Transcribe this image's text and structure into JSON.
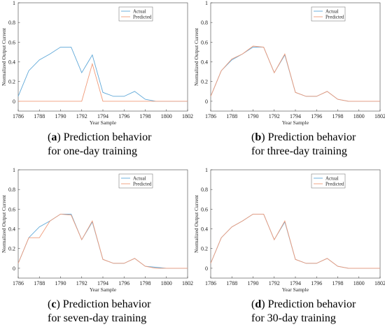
{
  "chart_data": [
    {
      "type": "line",
      "caption_letter": "a",
      "caption_line1": " Prediction behavior",
      "caption_line2": "for one-day training",
      "xlabel": "Year Sample",
      "ylabel": "Normalized Output Current",
      "xlim": [
        1786,
        1802
      ],
      "ylim": [
        -0.1,
        1
      ],
      "xticks": [
        "1786",
        "1788",
        "1790",
        "1792",
        "1794",
        "1796",
        "1798",
        "1800",
        "1802"
      ],
      "yticks": [
        "0",
        "0.2",
        "0.4",
        "0.6",
        "0.8",
        "1"
      ],
      "legend": "top-right",
      "colors": {
        "actual": "#5fa8d8",
        "predicted": "#f09a78"
      },
      "x": [
        1786,
        1787,
        1788,
        1789,
        1790,
        1791,
        1792,
        1793,
        1794,
        1795,
        1796,
        1797,
        1798,
        1799,
        1800,
        1801,
        1802
      ],
      "series": [
        {
          "name": "Actual",
          "values": [
            0.05,
            0.31,
            0.42,
            0.48,
            0.55,
            0.55,
            0.29,
            0.47,
            0.09,
            0.05,
            0.05,
            0.1,
            0.02,
            0.0,
            0.0,
            0.0,
            0.0
          ]
        },
        {
          "name": "Predicted",
          "values": [
            0,
            0,
            0,
            0,
            0,
            0,
            0,
            0.38,
            0,
            0,
            0,
            0,
            0,
            0,
            0,
            0,
            0
          ]
        }
      ]
    },
    {
      "type": "line",
      "caption_letter": "b",
      "caption_line1": " Prediction behavior",
      "caption_line2": "for three-day training",
      "xlabel": "Year Sample",
      "ylabel": "Normalized Output Current",
      "xlim": [
        1786,
        1802
      ],
      "ylim": [
        -0.1,
        1
      ],
      "xticks": [
        "1786",
        "1788",
        "1790",
        "1792",
        "1794",
        "1796",
        "1798",
        "1800",
        "1802"
      ],
      "yticks": [
        "0",
        "0.2",
        "0.4",
        "0.6",
        "0.8",
        "1"
      ],
      "legend": "top-right",
      "colors": {
        "actual": "#5fa8d8",
        "predicted": "#f09a78"
      },
      "x": [
        1786,
        1787,
        1788,
        1789,
        1790,
        1791,
        1792,
        1793,
        1794,
        1795,
        1796,
        1797,
        1798,
        1799,
        1800,
        1801,
        1802
      ],
      "series": [
        {
          "name": "Actual",
          "values": [
            0.05,
            0.31,
            0.42,
            0.48,
            0.55,
            0.55,
            0.29,
            0.47,
            0.09,
            0.05,
            0.05,
            0.1,
            0.02,
            0.0,
            0.0,
            0.0,
            0.0
          ]
        },
        {
          "name": "Predicted",
          "values": [
            0.05,
            0.31,
            0.43,
            0.48,
            0.56,
            0.55,
            0.29,
            0.48,
            0.09,
            0.05,
            0.05,
            0.1,
            0.02,
            0.0,
            0.0,
            0.0,
            0.0
          ]
        }
      ]
    },
    {
      "type": "line",
      "caption_letter": "c",
      "caption_line1": " Prediction behavior",
      "caption_line2": "for seven-day training",
      "xlabel": "Year Sample",
      "ylabel": "Normalized Output Current",
      "xlim": [
        1786,
        1802
      ],
      "ylim": [
        -0.1,
        1
      ],
      "xticks": [
        "1786",
        "1788",
        "1790",
        "1792",
        "1794",
        "1796",
        "1798",
        "1800",
        "1802"
      ],
      "yticks": [
        "0",
        "0.2",
        "0.4",
        "0.6",
        "0.8",
        "1"
      ],
      "legend": "top-right",
      "colors": {
        "actual": "#5fa8d8",
        "predicted": "#f09a78"
      },
      "x": [
        1786,
        1787,
        1788,
        1789,
        1790,
        1791,
        1792,
        1793,
        1794,
        1795,
        1796,
        1797,
        1798,
        1799,
        1800,
        1801,
        1802
      ],
      "series": [
        {
          "name": "Actual",
          "values": [
            0.05,
            0.31,
            0.42,
            0.48,
            0.55,
            0.55,
            0.29,
            0.47,
            0.09,
            0.05,
            0.05,
            0.1,
            0.02,
            0.01,
            0.0,
            0.0,
            0.0
          ]
        },
        {
          "name": "Predicted",
          "values": [
            0.05,
            0.31,
            0.31,
            0.48,
            0.55,
            0.54,
            0.29,
            0.48,
            0.09,
            0.05,
            0.05,
            0.1,
            0.02,
            0.0,
            0.0,
            0.0,
            0.0
          ]
        }
      ]
    },
    {
      "type": "line",
      "caption_letter": "d",
      "caption_line1": " Prediction behavior",
      "caption_line2": "for 30-day training",
      "xlabel": "Year Sample",
      "ylabel": "Normalized Output Current",
      "xlim": [
        1786,
        1802
      ],
      "ylim": [
        -0.1,
        1
      ],
      "xticks": [
        "1786",
        "1788",
        "1790",
        "1792",
        "1794",
        "1796",
        "1798",
        "1800",
        "1802"
      ],
      "yticks": [
        "0",
        "0.2",
        "0.4",
        "0.6",
        "0.8",
        "1"
      ],
      "legend": "top-right",
      "colors": {
        "actual": "#5fa8d8",
        "predicted": "#f09a78"
      },
      "x": [
        1786,
        1787,
        1788,
        1789,
        1790,
        1791,
        1792,
        1793,
        1794,
        1795,
        1796,
        1797,
        1798,
        1799,
        1800,
        1801,
        1802
      ],
      "series": [
        {
          "name": "Actual",
          "values": [
            0.05,
            0.31,
            0.42,
            0.48,
            0.55,
            0.55,
            0.29,
            0.47,
            0.09,
            0.05,
            0.05,
            0.1,
            0.02,
            0.0,
            0.0,
            0.0,
            0.0
          ]
        },
        {
          "name": "Predicted",
          "values": [
            0.05,
            0.31,
            0.42,
            0.48,
            0.55,
            0.55,
            0.29,
            0.48,
            0.09,
            0.05,
            0.05,
            0.1,
            0.02,
            0.0,
            0.0,
            0.0,
            0.0
          ]
        }
      ]
    }
  ]
}
